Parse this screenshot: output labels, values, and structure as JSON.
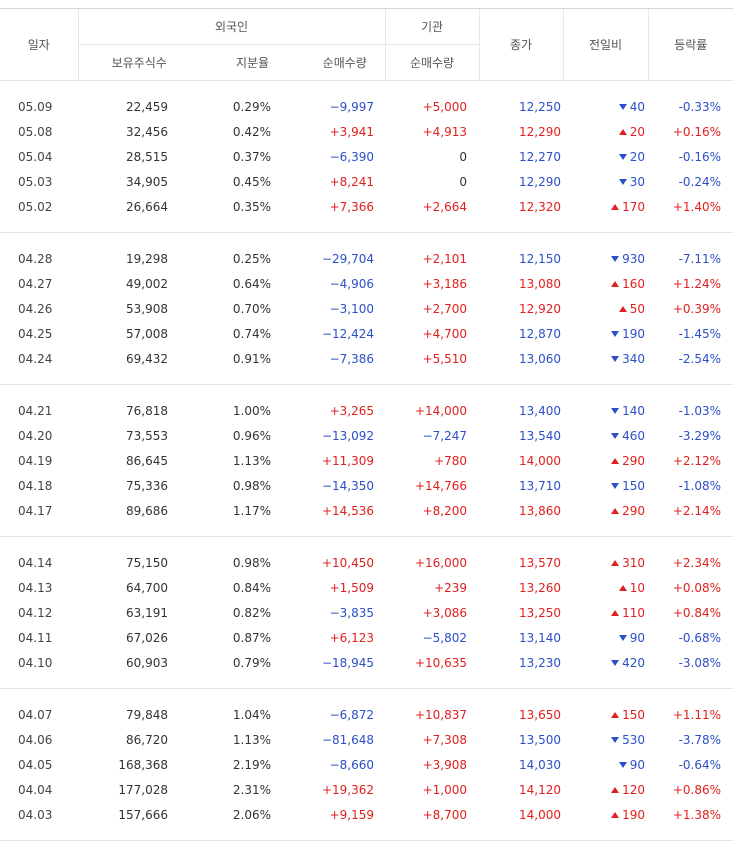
{
  "header": {
    "date": "일자",
    "foreign": "외국인",
    "inst": "기관",
    "close": "종가",
    "change": "전일비",
    "pct": "등락률",
    "sub": [
      "보유주식수",
      "지분율",
      "순매수량",
      "순매수량"
    ]
  },
  "groups": [
    [
      [
        "05.09",
        "22,459",
        "0.29%",
        "−9,997",
        "+5,000",
        "12,250",
        "40",
        "-0.33%"
      ],
      [
        "05.08",
        "32,456",
        "0.42%",
        "+3,941",
        "+4,913",
        "12,290",
        "20",
        "+0.16%"
      ],
      [
        "05.04",
        "28,515",
        "0.37%",
        "−6,390",
        "0",
        "12,270",
        "20",
        "-0.16%"
      ],
      [
        "05.03",
        "34,905",
        "0.45%",
        "+8,241",
        "0",
        "12,290",
        "30",
        "-0.24%"
      ],
      [
        "05.02",
        "26,664",
        "0.35%",
        "+7,366",
        "+2,664",
        "12,320",
        "170",
        "+1.40%"
      ]
    ],
    [
      [
        "04.28",
        "19,298",
        "0.25%",
        "−29,704",
        "+2,101",
        "12,150",
        "930",
        "-7.11%"
      ],
      [
        "04.27",
        "49,002",
        "0.64%",
        "−4,906",
        "+3,186",
        "13,080",
        "160",
        "+1.24%"
      ],
      [
        "04.26",
        "53,908",
        "0.70%",
        "−3,100",
        "+2,700",
        "12,920",
        "50",
        "+0.39%"
      ],
      [
        "04.25",
        "57,008",
        "0.74%",
        "−12,424",
        "+4,700",
        "12,870",
        "190",
        "-1.45%"
      ],
      [
        "04.24",
        "69,432",
        "0.91%",
        "−7,386",
        "+5,510",
        "13,060",
        "340",
        "-2.54%"
      ]
    ],
    [
      [
        "04.21",
        "76,818",
        "1.00%",
        "+3,265",
        "+14,000",
        "13,400",
        "140",
        "-1.03%"
      ],
      [
        "04.20",
        "73,553",
        "0.96%",
        "−13,092",
        "−7,247",
        "13,540",
        "460",
        "-3.29%"
      ],
      [
        "04.19",
        "86,645",
        "1.13%",
        "+11,309",
        "+780",
        "14,000",
        "290",
        "+2.12%"
      ],
      [
        "04.18",
        "75,336",
        "0.98%",
        "−14,350",
        "+14,766",
        "13,710",
        "150",
        "-1.08%"
      ],
      [
        "04.17",
        "89,686",
        "1.17%",
        "+14,536",
        "+8,200",
        "13,860",
        "290",
        "+2.14%"
      ]
    ],
    [
      [
        "04.14",
        "75,150",
        "0.98%",
        "+10,450",
        "+16,000",
        "13,570",
        "310",
        "+2.34%"
      ],
      [
        "04.13",
        "64,700",
        "0.84%",
        "+1,509",
        "+239",
        "13,260",
        "10",
        "+0.08%"
      ],
      [
        "04.12",
        "63,191",
        "0.82%",
        "−3,835",
        "+3,086",
        "13,250",
        "110",
        "+0.84%"
      ],
      [
        "04.11",
        "67,026",
        "0.87%",
        "+6,123",
        "−5,802",
        "13,140",
        "90",
        "-0.68%"
      ],
      [
        "04.10",
        "60,903",
        "0.79%",
        "−18,945",
        "+10,635",
        "13,230",
        "420",
        "-3.08%"
      ]
    ],
    [
      [
        "04.07",
        "79,848",
        "1.04%",
        "−6,872",
        "+10,837",
        "13,650",
        "150",
        "+1.11%"
      ],
      [
        "04.06",
        "86,720",
        "1.13%",
        "−81,648",
        "+7,308",
        "13,500",
        "530",
        "-3.78%"
      ],
      [
        "04.05",
        "168,368",
        "2.19%",
        "−8,660",
        "+3,908",
        "14,030",
        "90",
        "-0.64%"
      ],
      [
        "04.04",
        "177,028",
        "2.31%",
        "+19,362",
        "+1,000",
        "14,120",
        "120",
        "+0.86%"
      ],
      [
        "04.03",
        "157,666",
        "2.06%",
        "+9,159",
        "+8,700",
        "14,000",
        "190",
        "+1.38%"
      ]
    ]
  ]
}
